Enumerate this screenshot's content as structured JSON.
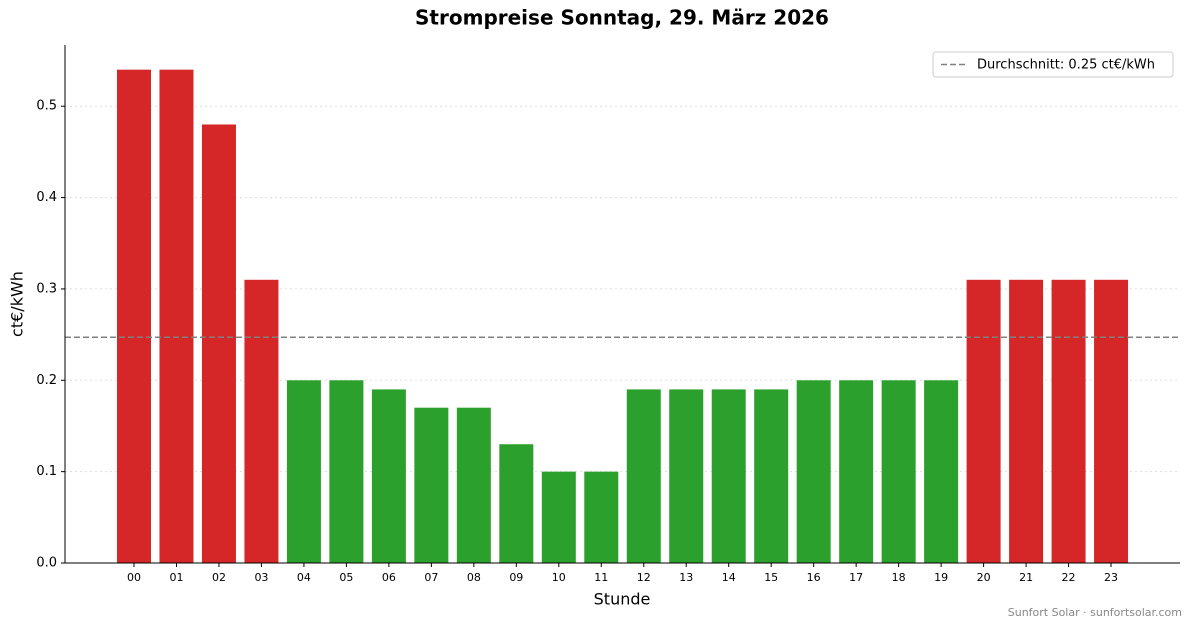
{
  "chart_data": {
    "type": "bar",
    "title": "Strompreise Sonntag, 29. März 2026",
    "xlabel": "Stunde",
    "ylabel": "ct€/kWh",
    "categories": [
      "00",
      "01",
      "02",
      "03",
      "04",
      "05",
      "06",
      "07",
      "08",
      "09",
      "10",
      "11",
      "12",
      "13",
      "14",
      "15",
      "16",
      "17",
      "18",
      "19",
      "20",
      "21",
      "22",
      "23"
    ],
    "values": [
      0.54,
      0.54,
      0.48,
      0.31,
      0.2,
      0.2,
      0.19,
      0.17,
      0.17,
      0.13,
      0.1,
      0.1,
      0.19,
      0.19,
      0.19,
      0.19,
      0.2,
      0.2,
      0.2,
      0.2,
      0.31,
      0.31,
      0.31,
      0.31
    ],
    "colors": [
      "#d62728",
      "#d62728",
      "#d62728",
      "#d62728",
      "#2ca02c",
      "#2ca02c",
      "#2ca02c",
      "#2ca02c",
      "#2ca02c",
      "#2ca02c",
      "#2ca02c",
      "#2ca02c",
      "#2ca02c",
      "#2ca02c",
      "#2ca02c",
      "#2ca02c",
      "#2ca02c",
      "#2ca02c",
      "#2ca02c",
      "#2ca02c",
      "#d62728",
      "#d62728",
      "#d62728",
      "#d62728"
    ],
    "average": {
      "value": 0.2471,
      "label": "Durchschnitt: 0.25 ct€/kWh",
      "color": "#808080"
    },
    "ylim": [
      0,
      0.567
    ],
    "yticks": [
      {
        "value": 0,
        "label": "0.0"
      },
      0.1,
      0.2,
      0.3,
      0.4,
      0.5
    ],
    "grid": true,
    "legend": "upper right",
    "footer": "Sunfort Solar · sunfortsolar.com"
  }
}
